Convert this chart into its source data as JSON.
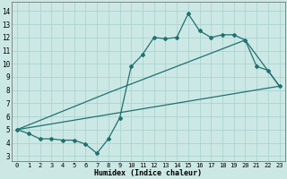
{
  "xlabel": "Humidex (Indice chaleur)",
  "background_color": "#cce8e5",
  "grid_color": "#aad4d0",
  "line_color": "#217070",
  "xlim": [
    -0.5,
    23.5
  ],
  "ylim": [
    2.6,
    14.7
  ],
  "xticks": [
    0,
    1,
    2,
    3,
    4,
    5,
    6,
    7,
    8,
    9,
    10,
    11,
    12,
    13,
    14,
    15,
    16,
    17,
    18,
    19,
    20,
    21,
    22,
    23
  ],
  "yticks": [
    3,
    4,
    5,
    6,
    7,
    8,
    9,
    10,
    11,
    12,
    13,
    14
  ],
  "line1_x": [
    0,
    1,
    2,
    3,
    4,
    5,
    6,
    7,
    8,
    9,
    10,
    11,
    12,
    13,
    14,
    15,
    16,
    17,
    18,
    19,
    20,
    21,
    22,
    23
  ],
  "line1_y": [
    5.0,
    4.7,
    4.3,
    4.3,
    4.2,
    4.2,
    3.9,
    3.2,
    4.3,
    5.9,
    9.8,
    10.7,
    12.0,
    11.9,
    12.0,
    13.8,
    12.5,
    12.0,
    12.2,
    12.2,
    11.8,
    9.8,
    9.5,
    8.3
  ],
  "line2_x": [
    0,
    23
  ],
  "line2_y": [
    5.0,
    8.3
  ],
  "line3_x": [
    0,
    8,
    20,
    23
  ],
  "line3_y": [
    5.0,
    7.8,
    11.8,
    8.3
  ],
  "xlabel_fontsize": 6.0,
  "tick_fontsize_x": 5.0,
  "tick_fontsize_y": 5.5
}
